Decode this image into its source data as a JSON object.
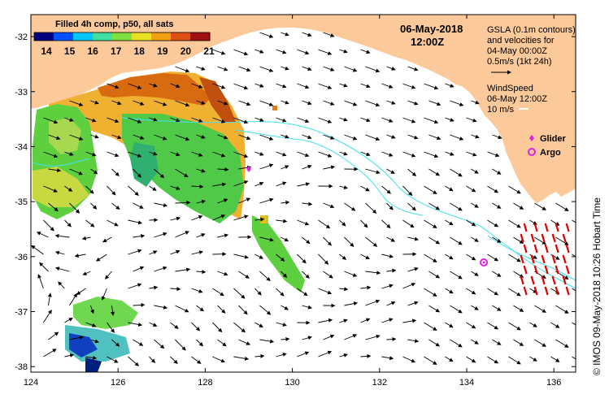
{
  "colorbar": {
    "title": "Filled 4h comp, p50, all sats",
    "ticks": [
      "14",
      "15",
      "16",
      "17",
      "18",
      "19",
      "20",
      "21"
    ],
    "colors": [
      "#000080",
      "#0050ff",
      "#00c8ff",
      "#40e0a0",
      "#80e040",
      "#e8e020",
      "#f0a010",
      "#e05010",
      "#a01010"
    ]
  },
  "header": {
    "date": "06-May-2018",
    "time": "12:00Z"
  },
  "info": {
    "gsla_line1": "GSLA (0.1m contours)",
    "gsla_line2": "and velocities for",
    "gsla_line3": "04-May 00:00Z",
    "scale_label": "0.5m/s (1kt 24h)",
    "wind_line1": "WindSpeed",
    "wind_line2": "06-May 12:00Z",
    "wind_scale": "10 m/s"
  },
  "legend": {
    "glider_label": "Glider",
    "argo_label": "Argo"
  },
  "credit": "© IMOS 09-May-2018 10:26 Hobart Time",
  "axes": {
    "x_ticks": [
      "124",
      "126",
      "128",
      "130",
      "132",
      "134",
      "136"
    ],
    "y_ticks": [
      "-32",
      "-33",
      "-34",
      "-35",
      "-36",
      "-37",
      "-38"
    ]
  },
  "colors": {
    "land": "#fbc99a",
    "contour": "#40e0f0",
    "glider": "#e020e0",
    "argo": "#e020e0",
    "wind": "#e00000"
  }
}
